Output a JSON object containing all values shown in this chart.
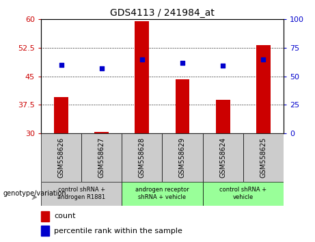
{
  "title": "GDS4113 / 241984_at",
  "samples": [
    "GSM558626",
    "GSM558627",
    "GSM558628",
    "GSM558629",
    "GSM558624",
    "GSM558625"
  ],
  "counts": [
    39.5,
    30.3,
    59.5,
    44.2,
    38.8,
    53.2
  ],
  "percentile_ranks": [
    60.0,
    57.0,
    65.0,
    61.5,
    59.5,
    65.0
  ],
  "ylim_left": [
    30,
    60
  ],
  "ylim_right": [
    0,
    100
  ],
  "yticks_left": [
    30,
    37.5,
    45,
    52.5,
    60
  ],
  "yticks_right": [
    0,
    25,
    50,
    75,
    100
  ],
  "bar_color": "#cc0000",
  "scatter_color": "#0000cc",
  "group_colors": [
    "#cccccc",
    "#99ff99",
    "#99ff99"
  ],
  "group_ranges": [
    [
      0,
      2
    ],
    [
      2,
      4
    ],
    [
      4,
      6
    ]
  ],
  "group_labels": [
    "control shRNA +\nandrogen R1881",
    "androgen receptor\nshRNA + vehicle",
    "control shRNA +\nvehicle"
  ],
  "bar_width": 0.35
}
